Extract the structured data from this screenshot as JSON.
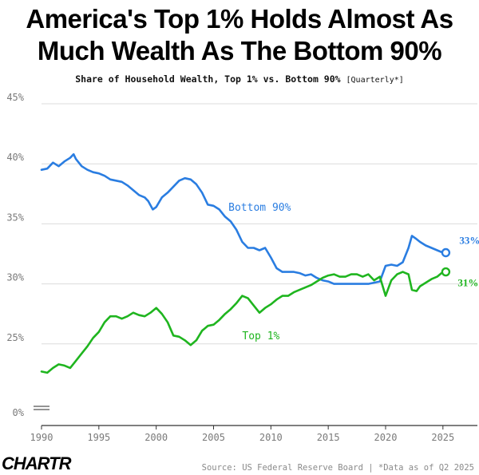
{
  "header": {
    "title_line1": "America's Top 1% Holds Almost As",
    "title_line2": "Much Wealth As The Bottom 90%",
    "subtitle": "Share of Household Wealth, Top 1% vs. Bottom 90%",
    "subtitle_note": "[Quarterly*]"
  },
  "footer": {
    "logo": "CHARTR",
    "source": "Source: US Federal Reserve Board | *Data as of Q2 2025"
  },
  "colors": {
    "bottom90": "#2a7de1",
    "top1": "#1fb51f",
    "grid": "#dcdcdc",
    "axis": "#333333"
  },
  "chart_data": {
    "type": "line",
    "title": "America's Top 1% Holds Almost As Much Wealth As The Bottom 90%",
    "subtitle": "Share of Household Wealth, Top 1% vs. Bottom 90%",
    "xlabel": "",
    "ylabel": "",
    "xlim": [
      1990,
      2025.5
    ],
    "ylim": [
      0,
      45
    ],
    "y_ticks": [
      "0%",
      "25%",
      "30%",
      "35%",
      "40%",
      "45%"
    ],
    "x_ticks": [
      "1990",
      "1995",
      "2000",
      "2005",
      "2010",
      "2015",
      "2020",
      "2025"
    ],
    "y_axis_break": true,
    "grid": "horizontal",
    "legend": "direct labels",
    "series": [
      {
        "name": "Bottom 90%",
        "end_label": "33%",
        "points": [
          [
            1990,
            39.5
          ],
          [
            1990.5,
            39.6
          ],
          [
            1991,
            40.1
          ],
          [
            1991.5,
            39.8
          ],
          [
            1992,
            40.2
          ],
          [
            1992.5,
            40.5
          ],
          [
            1992.8,
            40.8
          ],
          [
            1993,
            40.4
          ],
          [
            1993.5,
            39.8
          ],
          [
            1994,
            39.5
          ],
          [
            1994.5,
            39.3
          ],
          [
            1995,
            39.2
          ],
          [
            1995.5,
            39.0
          ],
          [
            1996,
            38.7
          ],
          [
            1996.5,
            38.6
          ],
          [
            1997,
            38.5
          ],
          [
            1997.5,
            38.2
          ],
          [
            1998,
            37.8
          ],
          [
            1998.5,
            37.4
          ],
          [
            1999,
            37.2
          ],
          [
            1999.3,
            36.9
          ],
          [
            1999.7,
            36.2
          ],
          [
            2000,
            36.4
          ],
          [
            2000.5,
            37.2
          ],
          [
            2001,
            37.6
          ],
          [
            2001.5,
            38.1
          ],
          [
            2002,
            38.6
          ],
          [
            2002.5,
            38.8
          ],
          [
            2003,
            38.7
          ],
          [
            2003.5,
            38.3
          ],
          [
            2004,
            37.6
          ],
          [
            2004.5,
            36.6
          ],
          [
            2005,
            36.5
          ],
          [
            2005.5,
            36.2
          ],
          [
            2006,
            35.6
          ],
          [
            2006.5,
            35.2
          ],
          [
            2007,
            34.5
          ],
          [
            2007.5,
            33.5
          ],
          [
            2008,
            33.0
          ],
          [
            2008.5,
            33.0
          ],
          [
            2009,
            32.8
          ],
          [
            2009.5,
            33.0
          ],
          [
            2010,
            32.2
          ],
          [
            2010.5,
            31.3
          ],
          [
            2011,
            31.0
          ],
          [
            2011.5,
            31.0
          ],
          [
            2012,
            31.0
          ],
          [
            2012.5,
            30.9
          ],
          [
            2013,
            30.7
          ],
          [
            2013.5,
            30.8
          ],
          [
            2014,
            30.5
          ],
          [
            2014.5,
            30.3
          ],
          [
            2015,
            30.2
          ],
          [
            2015.5,
            30.0
          ],
          [
            2016,
            30.0
          ],
          [
            2016.5,
            30.0
          ],
          [
            2017,
            30.0
          ],
          [
            2017.5,
            30.0
          ],
          [
            2018,
            30.0
          ],
          [
            2018.5,
            30.0
          ],
          [
            2019,
            30.1
          ],
          [
            2019.5,
            30.2
          ],
          [
            2020,
            31.5
          ],
          [
            2020.5,
            31.6
          ],
          [
            2021,
            31.5
          ],
          [
            2021.5,
            31.8
          ],
          [
            2022,
            33.0
          ],
          [
            2022.3,
            34.0
          ],
          [
            2022.6,
            33.8
          ],
          [
            2023,
            33.5
          ],
          [
            2023.5,
            33.2
          ],
          [
            2024,
            33.0
          ],
          [
            2024.5,
            32.8
          ],
          [
            2025,
            32.6
          ],
          [
            2025.25,
            32.6
          ]
        ]
      },
      {
        "name": "Top 1%",
        "end_label": "31%",
        "points": [
          [
            1990,
            22.7
          ],
          [
            1990.5,
            22.6
          ],
          [
            1991,
            23.0
          ],
          [
            1991.5,
            23.3
          ],
          [
            1992,
            23.2
          ],
          [
            1992.5,
            23.0
          ],
          [
            1993,
            23.6
          ],
          [
            1993.5,
            24.2
          ],
          [
            1994,
            24.8
          ],
          [
            1994.5,
            25.5
          ],
          [
            1995,
            26.0
          ],
          [
            1995.5,
            26.8
          ],
          [
            1996,
            27.3
          ],
          [
            1996.5,
            27.3
          ],
          [
            1997,
            27.1
          ],
          [
            1997.5,
            27.3
          ],
          [
            1998,
            27.6
          ],
          [
            1998.5,
            27.4
          ],
          [
            1999,
            27.3
          ],
          [
            1999.5,
            27.6
          ],
          [
            2000,
            28.0
          ],
          [
            2000.5,
            27.5
          ],
          [
            2001,
            26.8
          ],
          [
            2001.5,
            25.7
          ],
          [
            2002,
            25.6
          ],
          [
            2002.5,
            25.3
          ],
          [
            2003,
            24.9
          ],
          [
            2003.5,
            25.3
          ],
          [
            2004,
            26.1
          ],
          [
            2004.5,
            26.5
          ],
          [
            2005,
            26.6
          ],
          [
            2005.5,
            27.0
          ],
          [
            2006,
            27.5
          ],
          [
            2006.5,
            27.9
          ],
          [
            2007,
            28.4
          ],
          [
            2007.5,
            29.0
          ],
          [
            2008,
            28.8
          ],
          [
            2008.5,
            28.2
          ],
          [
            2009,
            27.6
          ],
          [
            2009.5,
            28.0
          ],
          [
            2010,
            28.3
          ],
          [
            2010.5,
            28.7
          ],
          [
            2011,
            29.0
          ],
          [
            2011.5,
            29.0
          ],
          [
            2012,
            29.3
          ],
          [
            2012.5,
            29.5
          ],
          [
            2013,
            29.7
          ],
          [
            2013.5,
            29.9
          ],
          [
            2014,
            30.2
          ],
          [
            2014.5,
            30.5
          ],
          [
            2015,
            30.7
          ],
          [
            2015.5,
            30.8
          ],
          [
            2016,
            30.6
          ],
          [
            2016.5,
            30.6
          ],
          [
            2017,
            30.8
          ],
          [
            2017.5,
            30.8
          ],
          [
            2018,
            30.6
          ],
          [
            2018.5,
            30.8
          ],
          [
            2019,
            30.3
          ],
          [
            2019.5,
            30.6
          ],
          [
            2020,
            29.0
          ],
          [
            2020.5,
            30.3
          ],
          [
            2021,
            30.8
          ],
          [
            2021.5,
            31.0
          ],
          [
            2022,
            30.8
          ],
          [
            2022.3,
            29.5
          ],
          [
            2022.7,
            29.4
          ],
          [
            2023,
            29.8
          ],
          [
            2023.5,
            30.1
          ],
          [
            2024,
            30.4
          ],
          [
            2024.5,
            30.6
          ],
          [
            2025,
            31.0
          ],
          [
            2025.25,
            31.0
          ]
        ]
      }
    ]
  }
}
